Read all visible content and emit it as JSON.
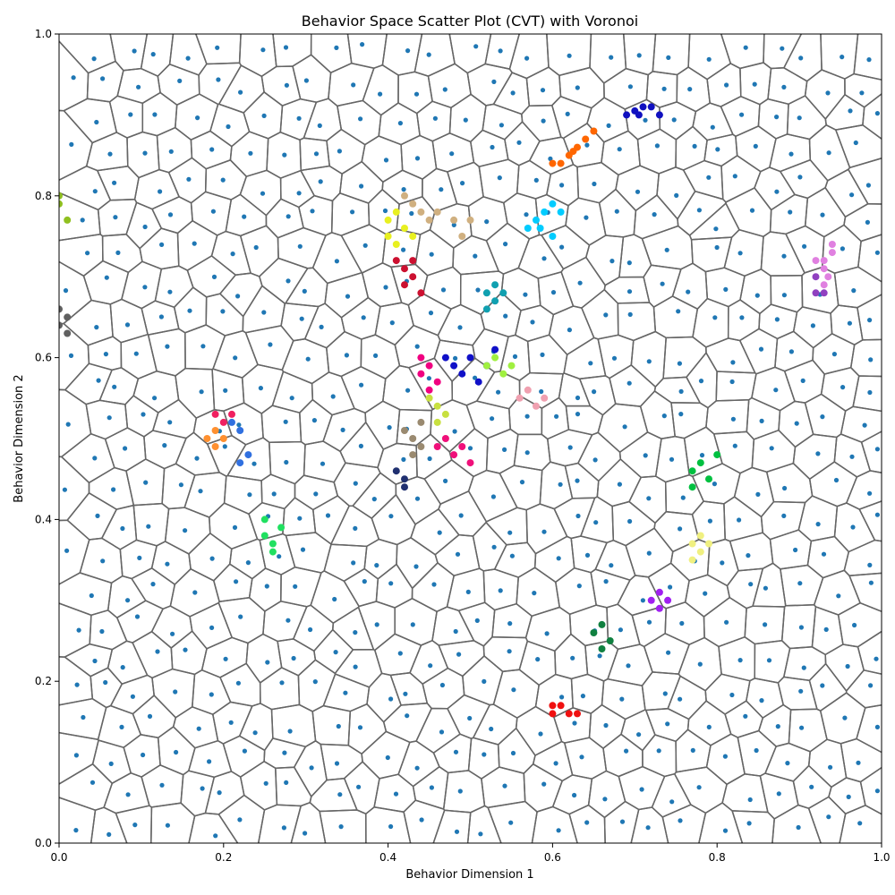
{
  "chart_data": {
    "type": "scatter",
    "title": "Behavior Space Scatter Plot (CVT) with Voronoi",
    "xlabel": "Behavior Dimension 1",
    "ylabel": "Behavior Dimension 2",
    "xlim": [
      0.0,
      1.0
    ],
    "ylim": [
      0.0,
      1.0
    ],
    "xticks": [
      "0.0",
      "0.2",
      "0.4",
      "0.6",
      "0.8",
      "1.0"
    ],
    "yticks": [
      "0.0",
      "0.2",
      "0.4",
      "0.6",
      "0.8",
      "1.0"
    ],
    "grid": false,
    "legend": "none",
    "overlay": "voronoi",
    "voronoi_edge_color": "#666666",
    "centroid_color": "#1f77b4",
    "centroid_count": 600,
    "series": [
      {
        "color": "#ff6600",
        "points": [
          [
            0.6,
            0.84
          ],
          [
            0.62,
            0.85
          ],
          [
            0.63,
            0.86
          ],
          [
            0.64,
            0.87
          ],
          [
            0.65,
            0.88
          ],
          [
            0.61,
            0.84
          ],
          [
            0.625,
            0.855
          ]
        ]
      },
      {
        "color": "#1010c0",
        "points": [
          [
            0.69,
            0.9
          ],
          [
            0.7,
            0.905
          ],
          [
            0.71,
            0.91
          ],
          [
            0.72,
            0.91
          ],
          [
            0.73,
            0.9
          ],
          [
            0.705,
            0.9
          ]
        ]
      },
      {
        "color": "#00ccff",
        "points": [
          [
            0.57,
            0.76
          ],
          [
            0.58,
            0.77
          ],
          [
            0.59,
            0.78
          ],
          [
            0.6,
            0.79
          ],
          [
            0.61,
            0.78
          ],
          [
            0.585,
            0.76
          ],
          [
            0.6,
            0.75
          ]
        ]
      },
      {
        "color": "#e8f020",
        "points": [
          [
            0.4,
            0.77
          ],
          [
            0.41,
            0.78
          ],
          [
            0.42,
            0.76
          ],
          [
            0.4,
            0.75
          ],
          [
            0.41,
            0.74
          ],
          [
            0.43,
            0.75
          ]
        ]
      },
      {
        "color": "#d0b080",
        "points": [
          [
            0.42,
            0.8
          ],
          [
            0.43,
            0.79
          ],
          [
            0.44,
            0.78
          ],
          [
            0.45,
            0.77
          ],
          [
            0.46,
            0.78
          ],
          [
            0.48,
            0.77
          ],
          [
            0.5,
            0.77
          ],
          [
            0.49,
            0.75
          ]
        ]
      },
      {
        "color": "#cc1030",
        "points": [
          [
            0.41,
            0.72
          ],
          [
            0.42,
            0.71
          ],
          [
            0.43,
            0.7
          ],
          [
            0.42,
            0.69
          ],
          [
            0.44,
            0.68
          ],
          [
            0.43,
            0.72
          ]
        ]
      },
      {
        "color": "#1010c8",
        "points": [
          [
            0.47,
            0.6
          ],
          [
            0.48,
            0.59
          ],
          [
            0.49,
            0.58
          ],
          [
            0.5,
            0.6
          ],
          [
            0.51,
            0.57
          ],
          [
            0.52,
            0.59
          ],
          [
            0.53,
            0.61
          ]
        ]
      },
      {
        "color": "#f00080",
        "points": [
          [
            0.44,
            0.58
          ],
          [
            0.45,
            0.59
          ],
          [
            0.46,
            0.57
          ],
          [
            0.45,
            0.56
          ],
          [
            0.44,
            0.6
          ]
        ]
      },
      {
        "color": "#c8e040",
        "points": [
          [
            0.45,
            0.55
          ],
          [
            0.46,
            0.54
          ],
          [
            0.47,
            0.53
          ],
          [
            0.46,
            0.52
          ]
        ]
      },
      {
        "color": "#9a8a70",
        "points": [
          [
            0.42,
            0.51
          ],
          [
            0.43,
            0.5
          ],
          [
            0.44,
            0.49
          ],
          [
            0.43,
            0.48
          ],
          [
            0.44,
            0.52
          ]
        ]
      },
      {
        "color": "#f0107a",
        "points": [
          [
            0.46,
            0.49
          ],
          [
            0.47,
            0.5
          ],
          [
            0.48,
            0.48
          ],
          [
            0.49,
            0.49
          ],
          [
            0.5,
            0.47
          ]
        ]
      },
      {
        "color": "#203070",
        "points": [
          [
            0.41,
            0.46
          ],
          [
            0.42,
            0.45
          ],
          [
            0.42,
            0.44
          ]
        ]
      },
      {
        "color": "#10a0b0",
        "points": [
          [
            0.52,
            0.68
          ],
          [
            0.53,
            0.67
          ],
          [
            0.54,
            0.68
          ],
          [
            0.53,
            0.69
          ],
          [
            0.52,
            0.66
          ]
        ]
      },
      {
        "color": "#a0f040",
        "points": [
          [
            0.52,
            0.59
          ],
          [
            0.53,
            0.6
          ],
          [
            0.54,
            0.58
          ],
          [
            0.55,
            0.59
          ]
        ]
      },
      {
        "color": "#f0a0b0",
        "points": [
          [
            0.56,
            0.55
          ],
          [
            0.57,
            0.56
          ],
          [
            0.58,
            0.54
          ],
          [
            0.59,
            0.55
          ]
        ]
      },
      {
        "color": "#e080e0",
        "points": [
          [
            0.93,
            0.71
          ],
          [
            0.93,
            0.72
          ],
          [
            0.94,
            0.73
          ],
          [
            0.94,
            0.74
          ],
          [
            0.935,
            0.7
          ],
          [
            0.93,
            0.69
          ],
          [
            0.92,
            0.72
          ]
        ]
      },
      {
        "color": "#9040c0",
        "points": [
          [
            0.92,
            0.68
          ],
          [
            0.93,
            0.68
          ],
          [
            0.92,
            0.7
          ]
        ]
      },
      {
        "color": "#f0f080",
        "points": [
          [
            0.77,
            0.37
          ],
          [
            0.78,
            0.36
          ],
          [
            0.79,
            0.37
          ],
          [
            0.78,
            0.38
          ],
          [
            0.77,
            0.35
          ]
        ]
      },
      {
        "color": "#00c040",
        "points": [
          [
            0.77,
            0.46
          ],
          [
            0.78,
            0.47
          ],
          [
            0.79,
            0.45
          ],
          [
            0.77,
            0.44
          ],
          [
            0.8,
            0.48
          ]
        ]
      },
      {
        "color": "#f01010",
        "points": [
          [
            0.6,
            0.16
          ],
          [
            0.61,
            0.17
          ],
          [
            0.62,
            0.16
          ],
          [
            0.6,
            0.17
          ],
          [
            0.63,
            0.16
          ]
        ]
      },
      {
        "color": "#a020f0",
        "points": [
          [
            0.72,
            0.3
          ],
          [
            0.73,
            0.29
          ],
          [
            0.74,
            0.3
          ],
          [
            0.73,
            0.31
          ]
        ]
      },
      {
        "color": "#108040",
        "points": [
          [
            0.65,
            0.26
          ],
          [
            0.66,
            0.27
          ],
          [
            0.67,
            0.25
          ],
          [
            0.66,
            0.24
          ]
        ]
      },
      {
        "color": "#20e060",
        "points": [
          [
            0.25,
            0.38
          ],
          [
            0.26,
            0.37
          ],
          [
            0.27,
            0.39
          ],
          [
            0.26,
            0.36
          ],
          [
            0.25,
            0.4
          ]
        ]
      },
      {
        "color": "#ff9030",
        "points": [
          [
            0.18,
            0.5
          ],
          [
            0.19,
            0.49
          ],
          [
            0.19,
            0.51
          ],
          [
            0.2,
            0.5
          ]
        ]
      },
      {
        "color": "#3070e0",
        "points": [
          [
            0.21,
            0.52
          ],
          [
            0.22,
            0.51
          ],
          [
            0.23,
            0.48
          ],
          [
            0.22,
            0.47
          ]
        ]
      },
      {
        "color": "#f02060",
        "points": [
          [
            0.19,
            0.53
          ],
          [
            0.2,
            0.52
          ],
          [
            0.21,
            0.53
          ]
        ]
      },
      {
        "color": "#606060",
        "points": [
          [
            0.0,
            0.66
          ],
          [
            0.01,
            0.65
          ],
          [
            0.0,
            0.64
          ],
          [
            0.01,
            0.63
          ]
        ]
      },
      {
        "color": "#90c020",
        "points": [
          [
            0.0,
            0.79
          ],
          [
            0.0,
            0.8
          ],
          [
            0.01,
            0.77
          ]
        ]
      },
      {
        "color": "#ffffff",
        "points": []
      }
    ]
  }
}
